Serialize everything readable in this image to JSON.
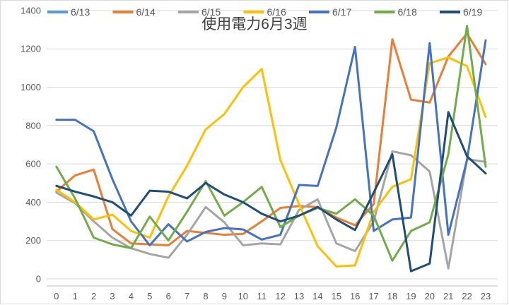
{
  "title": "使用電力6月3週",
  "colors": {
    "title_text": "#404040",
    "axis_text": "#595959",
    "gridline": "#d9d9d9",
    "axis_line": "#bfbfbf",
    "background": "#ffffff",
    "chart_border": "#d9d9d9"
  },
  "chart_data": {
    "type": "line",
    "title": "使用電力6月3週",
    "xlabel": "",
    "ylabel": "",
    "x": [
      0,
      1,
      2,
      3,
      4,
      5,
      6,
      7,
      8,
      9,
      10,
      11,
      12,
      13,
      14,
      15,
      16,
      17,
      18,
      19,
      20,
      21,
      22,
      23
    ],
    "x_tick_labels": [
      "0",
      "1",
      "2",
      "3",
      "4",
      "5",
      "6",
      "7",
      "8",
      "9",
      "10",
      "11",
      "12",
      "13",
      "14",
      "15",
      "16",
      "17",
      "18",
      "19",
      "20",
      "21",
      "22",
      "23"
    ],
    "ylim": [
      0,
      1400
    ],
    "y_ticks": [
      0,
      200,
      400,
      600,
      800,
      1000,
      1200,
      1400
    ],
    "y_tick_labels": [
      "0",
      "200",
      "400",
      "600",
      "800",
      "1000",
      "1200",
      "1400"
    ],
    "grid": "horizontal",
    "legend_position": "top",
    "series": [
      {
        "name": "6/13",
        "color": "#5B9BD5",
        "visible_in_plot": false,
        "values": null
      },
      {
        "name": "6/14",
        "color": "#ED7D31",
        "visible_in_plot": true,
        "values": [
          455,
          540,
          570,
          260,
          185,
          180,
          175,
          250,
          240,
          230,
          235,
          300,
          370,
          380,
          375,
          320,
          280,
          390,
          1250,
          935,
          920,
          1160,
          1280,
          1120
        ]
      },
      {
        "name": "6/15",
        "color": "#A5A5A5",
        "visible_in_plot": true,
        "values": [
          450,
          395,
          300,
          215,
          160,
          130,
          110,
          230,
          375,
          295,
          175,
          185,
          180,
          360,
          415,
          185,
          145,
          300,
          665,
          645,
          560,
          55,
          625,
          610
        ]
      },
      {
        "name": "6/16",
        "color": "#FFC000",
        "visible_in_plot": true,
        "values": [
          465,
          400,
          310,
          335,
          250,
          215,
          430,
          590,
          780,
          860,
          1000,
          1095,
          620,
          390,
          170,
          65,
          70,
          350,
          480,
          520,
          1125,
          1155,
          1110,
          845
        ]
      },
      {
        "name": "6/17",
        "color": "#4472C4",
        "visible_in_plot": true,
        "values": [
          830,
          830,
          770,
          520,
          300,
          175,
          285,
          195,
          245,
          265,
          258,
          205,
          230,
          490,
          485,
          790,
          1210,
          250,
          310,
          320,
          1230,
          230,
          620,
          1245
        ]
      },
      {
        "name": "6/18",
        "color": "#70AD47",
        "visible_in_plot": true,
        "values": [
          585,
          420,
          215,
          180,
          160,
          325,
          200,
          350,
          510,
          330,
          400,
          480,
          270,
          330,
          370,
          340,
          415,
          330,
          95,
          250,
          295,
          650,
          1320,
          585
        ]
      },
      {
        "name": "6/19",
        "color": "#1F4E79",
        "visible_in_plot": true,
        "values": [
          485,
          455,
          430,
          400,
          330,
          460,
          455,
          420,
          500,
          440,
          400,
          340,
          300,
          330,
          375,
          310,
          255,
          450,
          650,
          40,
          80,
          870,
          640,
          550
        ]
      }
    ]
  }
}
